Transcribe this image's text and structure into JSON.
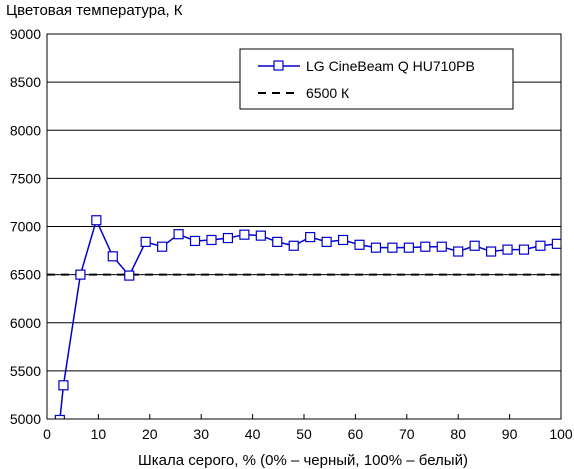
{
  "chart_data": {
    "type": "line",
    "title": "",
    "ylabel": "Цветовая температура, К",
    "xlabel": "Шкала серого, % (0% – черный, 100% – белый)",
    "xlim": [
      0,
      100
    ],
    "ylim": [
      5000,
      9000
    ],
    "xticks": [
      0,
      10,
      20,
      30,
      40,
      50,
      60,
      70,
      80,
      90,
      100
    ],
    "yticks": [
      5000,
      5500,
      6000,
      6500,
      7000,
      7500,
      8000,
      8500,
      9000
    ],
    "grid": "horizontal",
    "legend_position": "top-right",
    "series": [
      {
        "name": "LG CineBeam Q HU710PB",
        "color": "#0000cc",
        "marker": "square",
        "x": [
          2.5,
          3.2,
          6.5,
          9.6,
          12.8,
          16.0,
          19.2,
          22.4,
          25.6,
          28.8,
          32.0,
          35.2,
          38.4,
          41.6,
          44.8,
          48.0,
          51.2,
          54.4,
          57.6,
          60.8,
          64.0,
          67.2,
          70.4,
          73.6,
          76.8,
          80.0,
          83.2,
          86.4,
          89.6,
          92.8,
          96.0,
          99.2
        ],
        "y": [
          4990,
          5350,
          6500,
          7065,
          6690,
          6490,
          6840,
          6790,
          6920,
          6850,
          6860,
          6880,
          6915,
          6905,
          6840,
          6800,
          6890,
          6840,
          6860,
          6810,
          6780,
          6780,
          6780,
          6790,
          6790,
          6740,
          6800,
          6740,
          6760,
          6760,
          6800,
          6820
        ]
      },
      {
        "name": "6500 К",
        "color": "#000000",
        "style": "dashed",
        "x": [
          0,
          100
        ],
        "y": [
          6500,
          6500
        ]
      }
    ]
  }
}
